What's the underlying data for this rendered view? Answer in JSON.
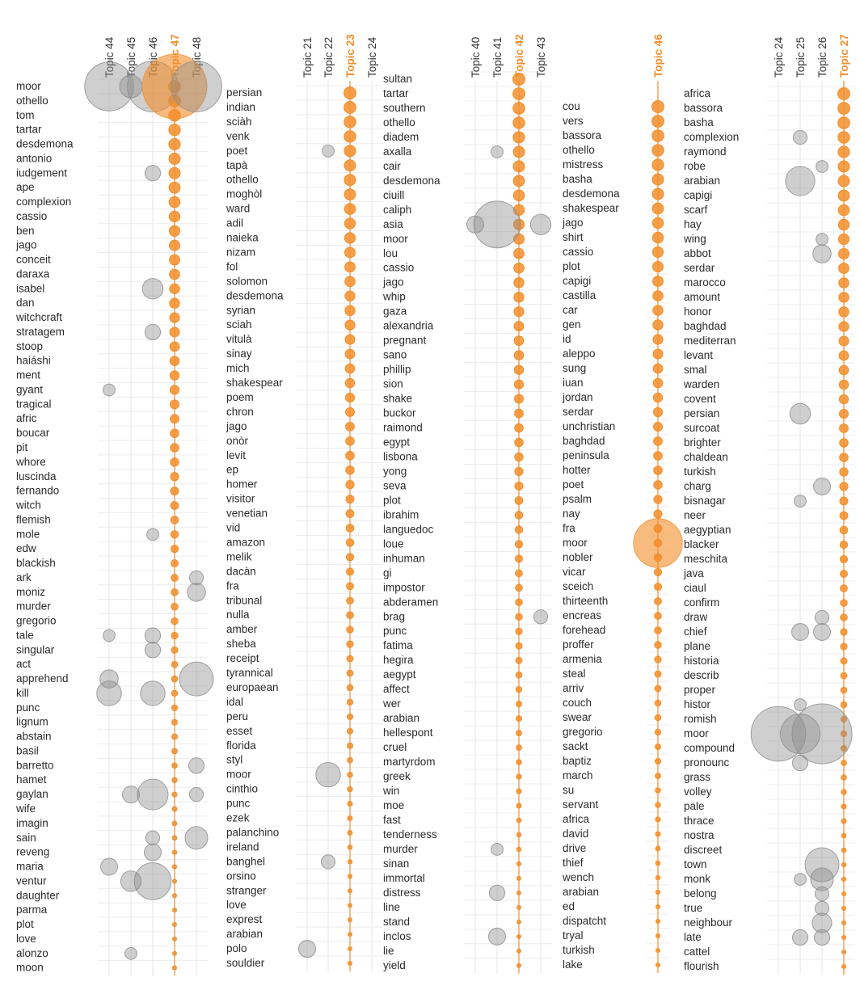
{
  "colors": {
    "highlight": "#f28e2b",
    "other": "#8c8c8c"
  },
  "chart_data": [
    {
      "type": "scatter",
      "encoding": "bubble size = word weight in topic",
      "topics": [
        "Topic 44",
        "Topic 45",
        "Topic 46",
        "Topic 47",
        "Topic 48"
      ],
      "highlighted_topic": "Topic 47",
      "words": [
        "moor",
        "othello",
        "tom",
        "tartar",
        "desdemona",
        "antonio",
        "iudgement",
        "ape",
        "complexion",
        "cassio",
        "ben",
        "jago",
        "conceit",
        "daraxa",
        "isabel",
        "dan",
        "witchcraft",
        "stratagem",
        "stoop",
        "haiáshi",
        "ment",
        "gyant",
        "tragical",
        "afric",
        "boucar",
        "pit",
        "whore",
        "luscinda",
        "fernando",
        "witch",
        "flemish",
        "mole",
        "edw",
        "blackish",
        "ark",
        "moniz",
        "murder",
        "gregorio",
        "tale",
        "singular",
        "act",
        "apprehend",
        "kill",
        "punc",
        "lignum",
        "abstain",
        "basil",
        "barretto",
        "hamet",
        "gaylan",
        "wife",
        "imagin",
        "sain",
        "reveng",
        "maria",
        "ventur",
        "daughter",
        "parma",
        "plot",
        "love",
        "alonzo",
        "moon"
      ],
      "points": [
        {
          "word": "moor",
          "topic": "Topic 44",
          "weight": 0.55
        },
        {
          "word": "moor",
          "topic": "Topic 45",
          "weight": 0.1
        },
        {
          "word": "moor",
          "topic": "Topic 46",
          "weight": 0.6
        },
        {
          "word": "moor",
          "topic": "Topic 47",
          "weight": 1.0
        },
        {
          "word": "moor",
          "topic": "Topic 48",
          "weight": 0.6
        },
        {
          "word": "iudgement",
          "topic": "Topic 46",
          "weight": 0.04
        },
        {
          "word": "isabel",
          "topic": "Topic 46",
          "weight": 0.08
        },
        {
          "word": "stratagem",
          "topic": "Topic 46",
          "weight": 0.04
        },
        {
          "word": "gyant",
          "topic": "Topic 44",
          "weight": 0.02
        },
        {
          "word": "mole",
          "topic": "Topic 46",
          "weight": 0.02
        },
        {
          "word": "ark",
          "topic": "Topic 48",
          "weight": 0.03
        },
        {
          "word": "moniz",
          "topic": "Topic 48",
          "weight": 0.06
        },
        {
          "word": "tale",
          "topic": "Topic 44",
          "weight": 0.02
        },
        {
          "word": "tale",
          "topic": "Topic 46",
          "weight": 0.04
        },
        {
          "word": "singular",
          "topic": "Topic 46",
          "weight": 0.04
        },
        {
          "word": "apprehend",
          "topic": "Topic 44",
          "weight": 0.06
        },
        {
          "word": "apprehend",
          "topic": "Topic 48",
          "weight": 0.25
        },
        {
          "word": "kill",
          "topic": "Topic 44",
          "weight": 0.12
        },
        {
          "word": "kill",
          "topic": "Topic 46",
          "weight": 0.12
        },
        {
          "word": "barretto",
          "topic": "Topic 48",
          "weight": 0.04
        },
        {
          "word": "gaylan",
          "topic": "Topic 45",
          "weight": 0.05
        },
        {
          "word": "gaylan",
          "topic": "Topic 46",
          "weight": 0.2
        },
        {
          "word": "gaylan",
          "topic": "Topic 48",
          "weight": 0.03
        },
        {
          "word": "sain",
          "topic": "Topic 46",
          "weight": 0.03
        },
        {
          "word": "sain",
          "topic": "Topic 48",
          "weight": 0.1
        },
        {
          "word": "reveng",
          "topic": "Topic 46",
          "weight": 0.05
        },
        {
          "word": "maria",
          "topic": "Topic 44",
          "weight": 0.05
        },
        {
          "word": "ventur",
          "topic": "Topic 45",
          "weight": 0.08
        },
        {
          "word": "ventur",
          "topic": "Topic 46",
          "weight": 0.3
        },
        {
          "word": "alonzo",
          "topic": "Topic 45",
          "weight": 0.02
        }
      ]
    },
    {
      "type": "scatter",
      "encoding": "bubble size = word weight in topic",
      "topics": [
        "Topic 21",
        "Topic 22",
        "Topic 23",
        "Topic 24"
      ],
      "highlighted_topic": "Topic 23",
      "words": [
        "persian",
        "indian",
        "sciàh",
        "venk",
        "poet",
        "tapà",
        "othello",
        "moghòl",
        "ward",
        "adil",
        "naieka",
        "nizam",
        "fol",
        "solomon",
        "desdemona",
        "syrian",
        "sciah",
        "vitulà",
        "sinay",
        "mich",
        "shakespear",
        "poem",
        "chron",
        "jago",
        "onòr",
        "levit",
        "ep",
        "homer",
        "visitor",
        "venetian",
        "vid",
        "amazon",
        "melik",
        "dacàn",
        "fra",
        "tribunal",
        "nulla",
        "amber",
        "sheba",
        "receipt",
        "tyrannical",
        "europaean",
        "idal",
        "peru",
        "esset",
        "florida",
        "styl",
        "moor",
        "cinthio",
        "punc",
        "ezek",
        "palanchino",
        "ireland",
        "banghel",
        "orsino",
        "stranger",
        "love",
        "exprest",
        "arabian",
        "polo",
        "souldier"
      ],
      "points": [
        {
          "word": "poet",
          "topic": "Topic 22",
          "weight": 0.02
        },
        {
          "word": "moor",
          "topic": "Topic 22",
          "weight": 0.12
        },
        {
          "word": "banghel",
          "topic": "Topic 22",
          "weight": 0.03
        },
        {
          "word": "polo",
          "topic": "Topic 21",
          "weight": 0.05
        }
      ]
    },
    {
      "type": "scatter",
      "encoding": "bubble size = word weight in topic",
      "topics": [
        "Topic 40",
        "Topic 41",
        "Topic 42",
        "Topic 43"
      ],
      "highlighted_topic": "Topic 42",
      "words": [
        "sultan",
        "tartar",
        "southern",
        "othello",
        "diadem",
        "axalla",
        "cair",
        "desdemona",
        "ciuill",
        "caliph",
        "asia",
        "moor",
        "lou",
        "cassio",
        "jago",
        "whip",
        "gaza",
        "alexandria",
        "pregnant",
        "sano",
        "phillip",
        "sion",
        "shake",
        "buckor",
        "raimond",
        "egypt",
        "lisbona",
        "yong",
        "seva",
        "plot",
        "ibrahim",
        "languedoc",
        "loue",
        "inhuman",
        "gi",
        "impostor",
        "abderamen",
        "brag",
        "punc",
        "fatima",
        "hegira",
        "aegypt",
        "affect",
        "wer",
        "arabian",
        "hellespont",
        "cruel",
        "martyrdom",
        "greek",
        "win",
        "moe",
        "fast",
        "tenderness",
        "murder",
        "sinan",
        "immortal",
        "distress",
        "line",
        "stand",
        "inclos",
        "lie",
        "yield"
      ],
      "points": [
        {
          "word": "axalla",
          "topic": "Topic 41",
          "weight": 0.02
        },
        {
          "word": "asia",
          "topic": "Topic 40",
          "weight": 0.05
        },
        {
          "word": "asia",
          "topic": "Topic 41",
          "weight": 0.5
        },
        {
          "word": "asia",
          "topic": "Topic 43",
          "weight": 0.08
        },
        {
          "word": "brag",
          "topic": "Topic 43",
          "weight": 0.03
        },
        {
          "word": "murder",
          "topic": "Topic 41",
          "weight": 0.02
        },
        {
          "word": "distress",
          "topic": "Topic 41",
          "weight": 0.04
        },
        {
          "word": "inclos",
          "topic": "Topic 41",
          "weight": 0.05
        }
      ]
    },
    {
      "type": "scatter",
      "encoding": "bubble size = word weight in topic",
      "topics": [
        "Topic 46"
      ],
      "highlighted_topic": "Topic 46",
      "words": [
        "cou",
        "vers",
        "bassora",
        "othello",
        "mistress",
        "basha",
        "desdemona",
        "shakespear",
        "jago",
        "shirt",
        "cassio",
        "plot",
        "capigi",
        "castilla",
        "car",
        "gen",
        "id",
        "aleppo",
        "sung",
        "iuan",
        "jordan",
        "serdar",
        "unchristian",
        "baghdad",
        "peninsula",
        "hotter",
        "poet",
        "psalm",
        "nay",
        "fra",
        "moor",
        "nobler",
        "vicar",
        "sceich",
        "thirteenth",
        "encreas",
        "forehead",
        "proffer",
        "armenia",
        "steal",
        "arriv",
        "couch",
        "swear",
        "gregorio",
        "sackt",
        "baptiz",
        "march",
        "su",
        "servant",
        "africa",
        "david",
        "drive",
        "thief",
        "wench",
        "arabian",
        "ed",
        "dispatcht",
        "tryal",
        "turkish",
        "lake"
      ],
      "points": [
        {
          "word": "moor",
          "topic": "Topic 46",
          "weight": 0.55
        }
      ]
    },
    {
      "type": "scatter",
      "encoding": "bubble size = word weight in topic",
      "topics": [
        "Topic 24",
        "Topic 25",
        "Topic 26",
        "Topic 27"
      ],
      "highlighted_topic": "Topic 27",
      "words": [
        "africa",
        "bassora",
        "basha",
        "complexion",
        "raymond",
        "robe",
        "arabian",
        "capigi",
        "scarf",
        "hay",
        "wing",
        "abbot",
        "serdar",
        "marocco",
        "amount",
        "honor",
        "baghdad",
        "mediterran",
        "levant",
        "smal",
        "warden",
        "covent",
        "persian",
        "surcoat",
        "brighter",
        "chaldean",
        "turkish",
        "charg",
        "bisnagar",
        "neer",
        "aegyptian",
        "blacker",
        "meschita",
        "java",
        "ciaul",
        "confirm",
        "draw",
        "chief",
        "plane",
        "historia",
        "describ",
        "proper",
        "histor",
        "romish",
        "moor",
        "compound",
        "pronounc",
        "grass",
        "volley",
        "pale",
        "thrace",
        "nostra",
        "discreet",
        "town",
        "monk",
        "belong",
        "true",
        "neighbour",
        "late",
        "cattel",
        "flourish"
      ],
      "points": [
        {
          "word": "complexion",
          "topic": "Topic 25",
          "weight": 0.03
        },
        {
          "word": "robe",
          "topic": "Topic 26",
          "weight": 0.02
        },
        {
          "word": "arabian",
          "topic": "Topic 25",
          "weight": 0.18
        },
        {
          "word": "wing",
          "topic": "Topic 26",
          "weight": 0.02
        },
        {
          "word": "abbot",
          "topic": "Topic 26",
          "weight": 0.06
        },
        {
          "word": "persian",
          "topic": "Topic 25",
          "weight": 0.08
        },
        {
          "word": "charg",
          "topic": "Topic 26",
          "weight": 0.05
        },
        {
          "word": "bisnagar",
          "topic": "Topic 25",
          "weight": 0.02
        },
        {
          "word": "draw",
          "topic": "Topic 26",
          "weight": 0.03
        },
        {
          "word": "chief",
          "topic": "Topic 25",
          "weight": 0.05
        },
        {
          "word": "chief",
          "topic": "Topic 26",
          "weight": 0.05
        },
        {
          "word": "histor",
          "topic": "Topic 25",
          "weight": 0.02
        },
        {
          "word": "moor",
          "topic": "Topic 24",
          "weight": 0.7
        },
        {
          "word": "moor",
          "topic": "Topic 25",
          "weight": 0.35
        },
        {
          "word": "moor",
          "topic": "Topic 26",
          "weight": 0.85
        },
        {
          "word": "pronounc",
          "topic": "Topic 25",
          "weight": 0.04
        },
        {
          "word": "town",
          "topic": "Topic 26",
          "weight": 0.25
        },
        {
          "word": "monk",
          "topic": "Topic 25",
          "weight": 0.02
        },
        {
          "word": "monk",
          "topic": "Topic 26",
          "weight": 0.1
        },
        {
          "word": "belong",
          "topic": "Topic 26",
          "weight": 0.03
        },
        {
          "word": "true",
          "topic": "Topic 26",
          "weight": 0.03
        },
        {
          "word": "neighbour",
          "topic": "Topic 26",
          "weight": 0.07
        },
        {
          "word": "late",
          "topic": "Topic 25",
          "weight": 0.04
        },
        {
          "word": "late",
          "topic": "Topic 26",
          "weight": 0.04
        }
      ]
    }
  ]
}
